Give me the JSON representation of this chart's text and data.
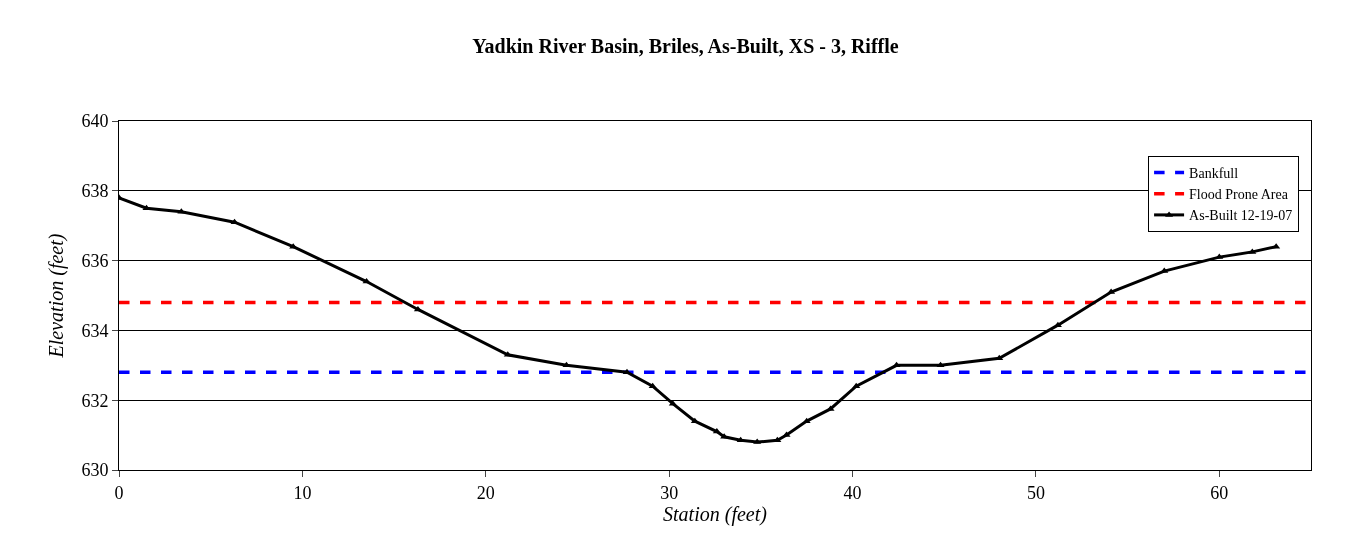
{
  "chart_data": {
    "type": "line",
    "title": "Yadkin River Basin, Briles, As-Built, XS - 3, Riffle",
    "xlabel": "Station (feet)",
    "ylabel": "Elevation (feet)",
    "xlim": [
      0,
      65
    ],
    "xticks": [
      0,
      10,
      20,
      30,
      40,
      50,
      60
    ],
    "ylim": [
      630,
      640
    ],
    "yticks": [
      630,
      632,
      634,
      636,
      638,
      640
    ],
    "grid": "y",
    "legend": "top right",
    "series": [
      {
        "name": "Bankfull",
        "color": "#0000ff",
        "line_style": "dashed",
        "marker": "none",
        "x": [
          0,
          65
        ],
        "values": [
          632.8,
          632.8
        ]
      },
      {
        "name": "Flood Prone Area",
        "color": "#ff0000",
        "line_style": "dashed",
        "marker": "none",
        "x": [
          0,
          65
        ],
        "values": [
          634.8,
          634.8
        ]
      },
      {
        "name": "As-Built 12-19-07",
        "color": "#000000",
        "line_style": "solid",
        "marker": "triangle",
        "x": [
          0,
          1.5,
          3.4,
          6.3,
          9.5,
          13.5,
          16.3,
          21.2,
          24.4,
          27.7,
          29.1,
          30.2,
          31.4,
          32.6,
          33.0,
          33.9,
          34.8,
          35.9,
          36.4,
          37.5,
          38.8,
          40.2,
          42.4,
          44.8,
          48.0,
          51.2,
          54.1,
          57.0,
          60.0,
          61.8,
          63.1
        ],
        "values": [
          637.8,
          637.5,
          637.4,
          637.1,
          636.4,
          635.4,
          634.6,
          633.3,
          633.0,
          632.8,
          632.4,
          631.9,
          631.4,
          631.1,
          630.95,
          630.85,
          630.8,
          630.85,
          631.0,
          631.4,
          631.75,
          632.4,
          633.0,
          633.0,
          633.2,
          634.15,
          635.1,
          635.7,
          636.1,
          636.25,
          636.4
        ]
      }
    ]
  }
}
